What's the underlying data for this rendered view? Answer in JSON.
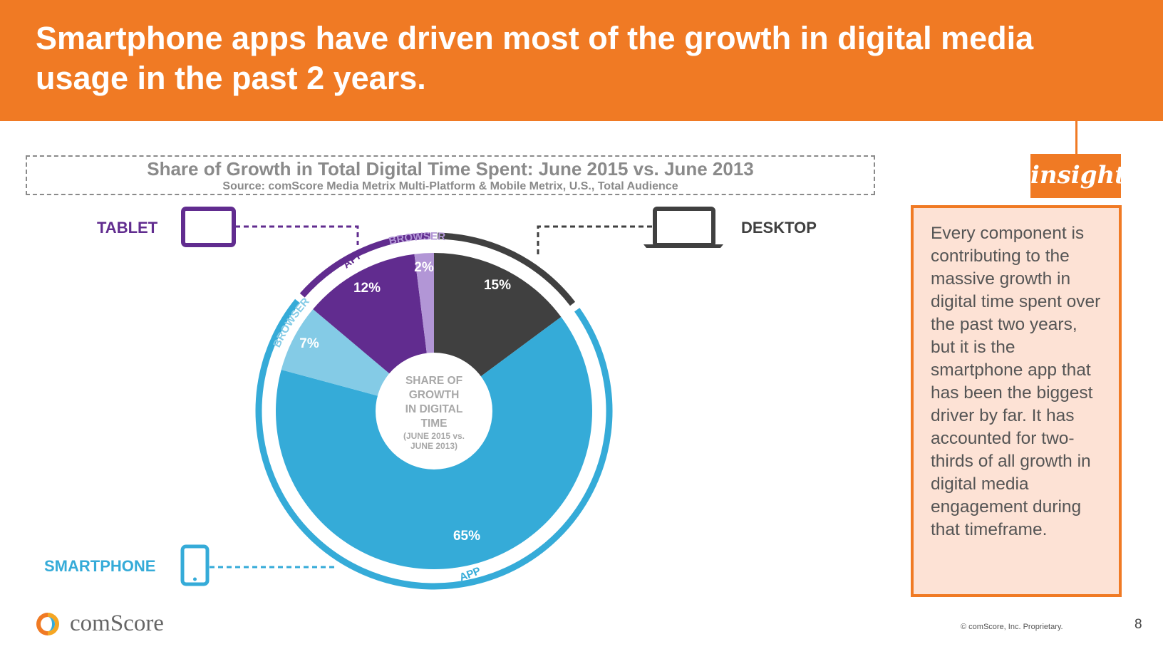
{
  "slide": {
    "title": "Smartphone apps have driven most of the growth in digital media usage in the past 2 years.",
    "page_number": "8",
    "copyright": "© comScore, Inc. Proprietary.",
    "brand": "comScore"
  },
  "chart_data": {
    "type": "pie",
    "title": "Share of Growth in Total Digital Time Spent: June 2015 vs. June 2013",
    "subtitle": "Source: comScore Media Metrix Multi-Platform & Mobile Metrix, U.S., Total Audience",
    "center_label": [
      "SHARE OF",
      "GROWTH",
      "IN DIGITAL",
      "TIME"
    ],
    "center_sublabel": [
      "(JUNE 2015 vs.",
      "JUNE 2013)"
    ],
    "slices": [
      {
        "platform": "DESKTOP",
        "value": 15,
        "label": "15%",
        "color": "#404040"
      },
      {
        "platform": "SMARTPHONE",
        "type": "APP",
        "value": 65,
        "label": "65%",
        "color": "#35abd8"
      },
      {
        "platform": "SMARTPHONE",
        "type": "BROWSER",
        "value": 7,
        "label": "7%",
        "color": "#84cbe6"
      },
      {
        "platform": "TABLET",
        "type": "APP",
        "value": 12,
        "label": "12%",
        "color": "#612c8f"
      },
      {
        "platform": "TABLET",
        "type": "BROWSER",
        "value": 2,
        "label": "2%",
        "color": "#b296d6"
      }
    ],
    "ring_labels": {
      "tablet_browser": "BROWSER",
      "tablet_app": "APP",
      "smartphone_browser": "BROWSER",
      "smartphone_app": "APP"
    },
    "platforms": {
      "tablet": {
        "label": "TABLET",
        "color": "#612c8f"
      },
      "desktop": {
        "label": "DESKTOP",
        "color": "#404040"
      },
      "smartphone": {
        "label": "SMARTPHONE",
        "color": "#35abd8"
      }
    }
  },
  "insight": {
    "badge": "insight",
    "text": "Every component is contributing to the massive growth in digital time spent over the past two years, but it is the smartphone app that has been the biggest driver by far. It has accounted for two-thirds of all growth in digital media engagement during that timeframe."
  },
  "colors": {
    "accent": "#f07a24",
    "insight_bg": "#fde2d5"
  }
}
